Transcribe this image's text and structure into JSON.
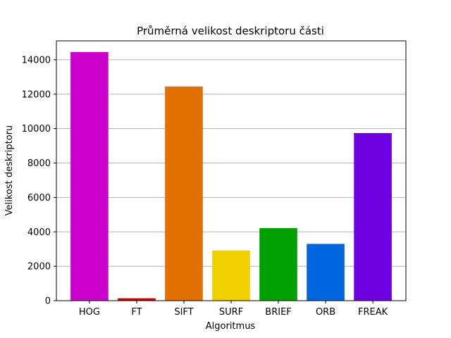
{
  "chart_data": {
    "type": "bar",
    "title": "Průměrná velikost deskriptoru části",
    "xlabel": "Algoritmus",
    "ylabel": "Velikost deskriptoru",
    "categories": [
      "HOG",
      "FT",
      "SIFT",
      "SURF",
      "BRIEF",
      "ORB",
      "FREAK"
    ],
    "values": [
      14450,
      140,
      12450,
      2920,
      4220,
      3300,
      9740
    ],
    "colors": [
      "#cc00cc",
      "#cc0000",
      "#e07000",
      "#f0d000",
      "#00a000",
      "#0066e0",
      "#6e00e0"
    ],
    "ylim": [
      0,
      15100
    ],
    "yticks": [
      0,
      2000,
      4000,
      6000,
      8000,
      10000,
      12000,
      14000
    ],
    "ytick_labels": [
      "0",
      "2000",
      "4000",
      "6000",
      "8000",
      "10000",
      "12000",
      "14000"
    ],
    "grid": "y"
  }
}
